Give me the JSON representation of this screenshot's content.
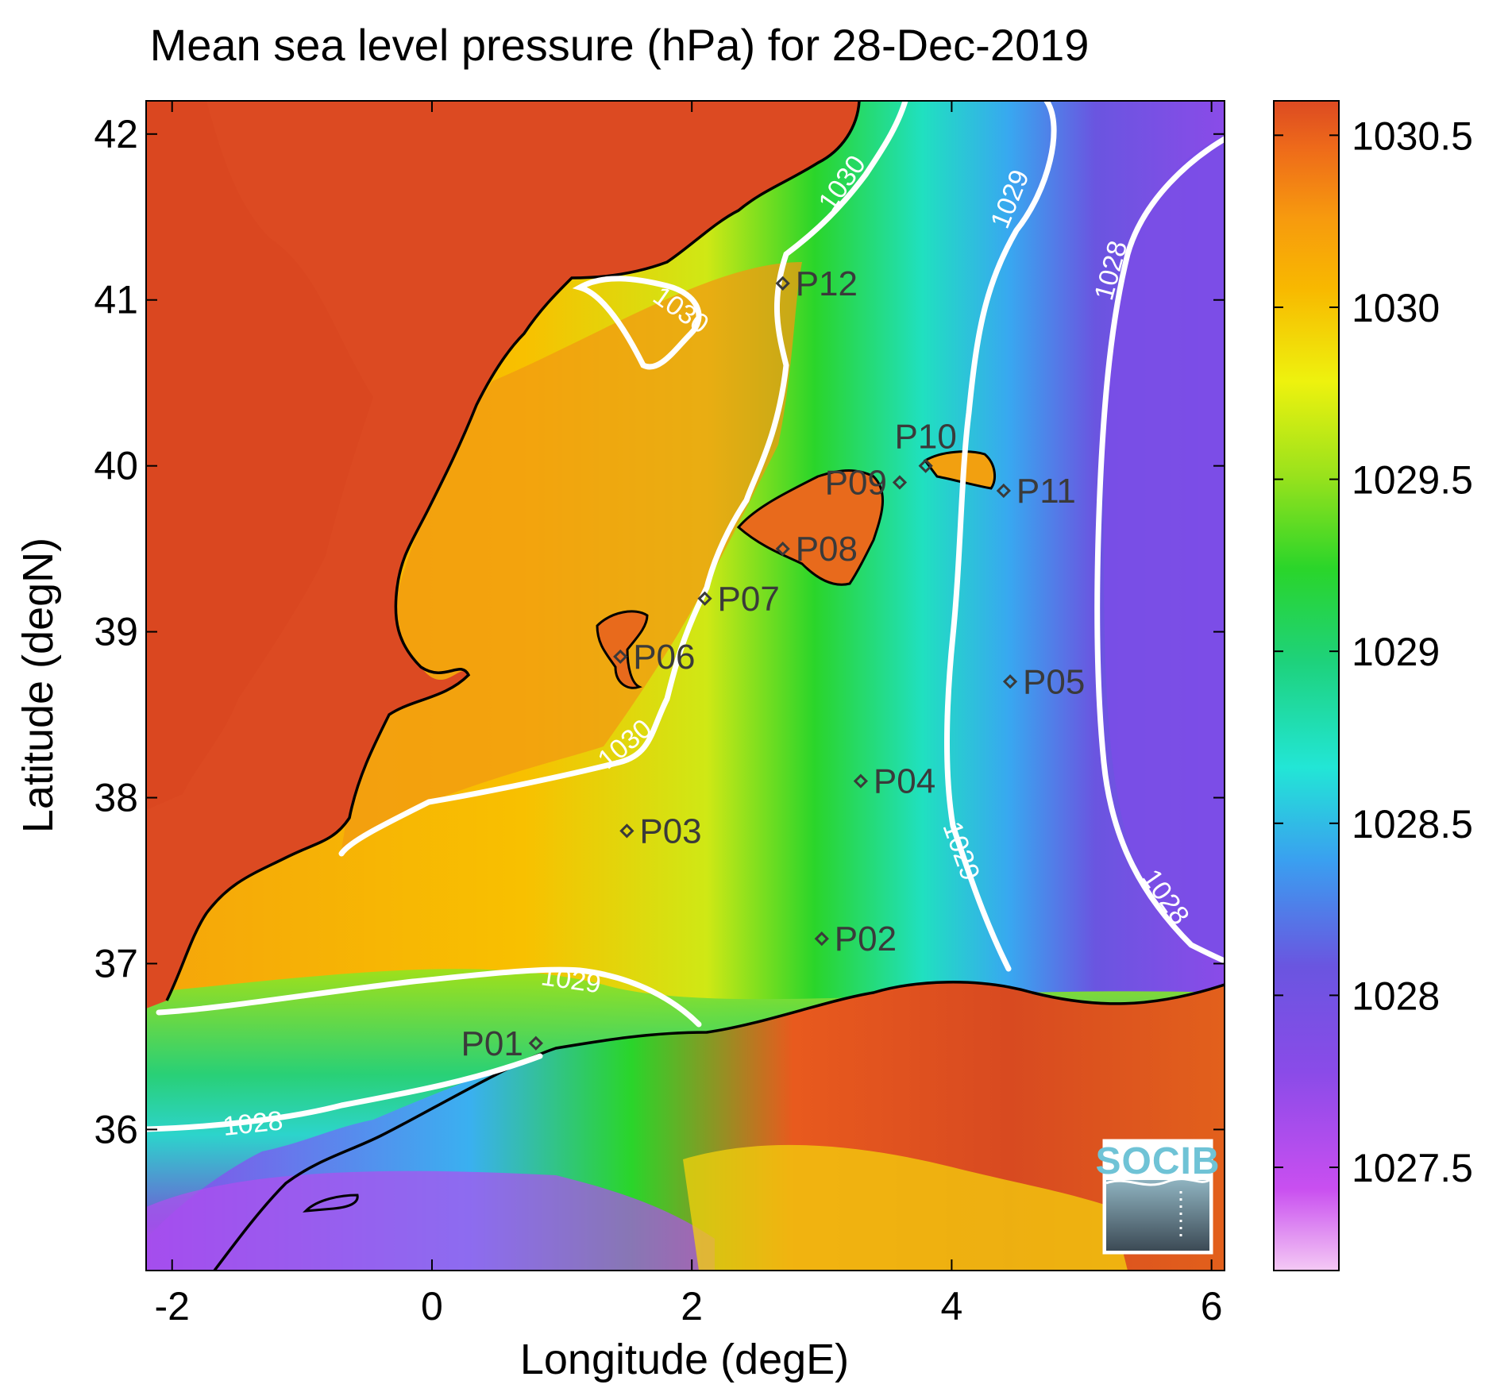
{
  "title": "Mean sea level pressure (hPa) for 28-Dec-2019",
  "axes": {
    "xlabel": "Longitude (degE)",
    "ylabel": "Latitude (degN)",
    "xlim": [
      -2.2,
      6.1
    ],
    "ylim": [
      35.15,
      42.2
    ],
    "xticks": [
      -2,
      0,
      2,
      4,
      6
    ],
    "yticks": [
      36,
      37,
      38,
      39,
      40,
      41,
      42
    ],
    "xtick_labels": [
      "-2",
      "0",
      "2",
      "4",
      "6"
    ],
    "ytick_labels": [
      "36",
      "37",
      "38",
      "39",
      "40",
      "41",
      "42"
    ]
  },
  "colorbar": {
    "min": 1027.2,
    "max": 1030.6,
    "ticks": [
      1027.5,
      1028,
      1028.5,
      1029,
      1029.5,
      1030,
      1030.5
    ],
    "tick_labels": [
      "1027.5",
      "1028",
      "1028.5",
      "1029",
      "1029.5",
      "1030",
      "1030.5"
    ],
    "colormap": [
      "#f4c9f4",
      "#c94ff0",
      "#8a4be8",
      "#6a55e0",
      "#3a9ff0",
      "#22e6d6",
      "#1ed27c",
      "#2ad52a",
      "#9ae21c",
      "#eef20e",
      "#f8b800",
      "#f79a0e",
      "#ee6a1a",
      "#dc4a22"
    ]
  },
  "stations": [
    {
      "name": "P01",
      "lon": 0.8,
      "lat": 36.52,
      "label_side": "left"
    },
    {
      "name": "P02",
      "lon": 3.0,
      "lat": 37.15,
      "label_side": "right"
    },
    {
      "name": "P03",
      "lon": 1.5,
      "lat": 37.8,
      "label_side": "right"
    },
    {
      "name": "P04",
      "lon": 3.3,
      "lat": 38.1,
      "label_side": "right"
    },
    {
      "name": "P05",
      "lon": 4.45,
      "lat": 38.7,
      "label_side": "right"
    },
    {
      "name": "P06",
      "lon": 1.45,
      "lat": 38.85,
      "label_side": "right"
    },
    {
      "name": "P07",
      "lon": 2.1,
      "lat": 39.2,
      "label_side": "right"
    },
    {
      "name": "P08",
      "lon": 2.7,
      "lat": 39.5,
      "label_side": "right"
    },
    {
      "name": "P09",
      "lon": 3.6,
      "lat": 39.9,
      "label_side": "left"
    },
    {
      "name": "P10",
      "lon": 3.8,
      "lat": 40.0,
      "label_side": "above"
    },
    {
      "name": "P11",
      "lon": 4.4,
      "lat": 39.85,
      "label_side": "right"
    },
    {
      "name": "P12",
      "lon": 2.7,
      "lat": 41.1,
      "label_side": "right"
    }
  ],
  "contour_labels": [
    "1030",
    "1030",
    "1030",
    "1029",
    "1029",
    "1029",
    "1028",
    "1028",
    "1028"
  ],
  "logo": "SOCIB",
  "colors": {
    "land_high": "#dc4a22",
    "coastline": "#000000",
    "contour": "#ffffff",
    "station_marker": "#3a3a3a"
  }
}
